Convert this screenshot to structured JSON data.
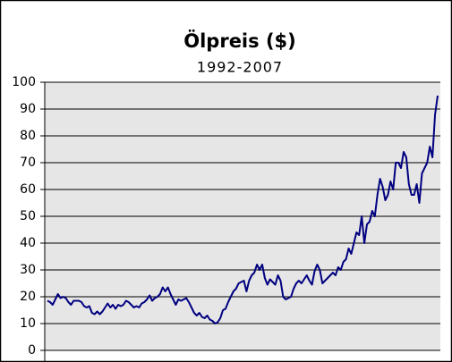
{
  "chart_data": {
    "type": "line",
    "title": "Ölpreis ($)",
    "subtitle": "1992-2007",
    "color": "#000080",
    "grid": true,
    "ylim": [
      0,
      100
    ],
    "yticks": [
      0,
      10,
      20,
      30,
      40,
      50,
      60,
      70,
      80,
      90,
      100
    ],
    "values": [
      18.5,
      18,
      17,
      19,
      21,
      19.5,
      20,
      19.5,
      18,
      17,
      18.5,
      18.5,
      18.5,
      18,
      16.5,
      16,
      16.5,
      14,
      13.5,
      14.5,
      13.5,
      14.5,
      16,
      17.5,
      16,
      17,
      15.5,
      17,
      16.5,
      17,
      18.5,
      18,
      17,
      16,
      16.5,
      16,
      17.5,
      18,
      19,
      20.5,
      18.5,
      19.5,
      20,
      21,
      23.5,
      22,
      23.5,
      21,
      19,
      17,
      19,
      18.5,
      19,
      19.5,
      18,
      16,
      14,
      13,
      14,
      12.5,
      12,
      13,
      11.5,
      11,
      10,
      10.5,
      12,
      15,
      15.5,
      18,
      20,
      22,
      23,
      25,
      25.5,
      26,
      22,
      26,
      28,
      29,
      32,
      30,
      32,
      27,
      24.5,
      26.5,
      25.5,
      24.5,
      28,
      26,
      20,
      19,
      19.5,
      20,
      23,
      25,
      26,
      25,
      26.5,
      28,
      26,
      24.5,
      29.5,
      32,
      30,
      25,
      26,
      27,
      28,
      29,
      28,
      31,
      30,
      33,
      34,
      38,
      36,
      40,
      44,
      43,
      50,
      40,
      47,
      48,
      52,
      50,
      58,
      64,
      61,
      56,
      58,
      63,
      60,
      70,
      70,
      68,
      74,
      72,
      62,
      58,
      58,
      62,
      55,
      66,
      68,
      70,
      76,
      72,
      88,
      95
    ]
  }
}
